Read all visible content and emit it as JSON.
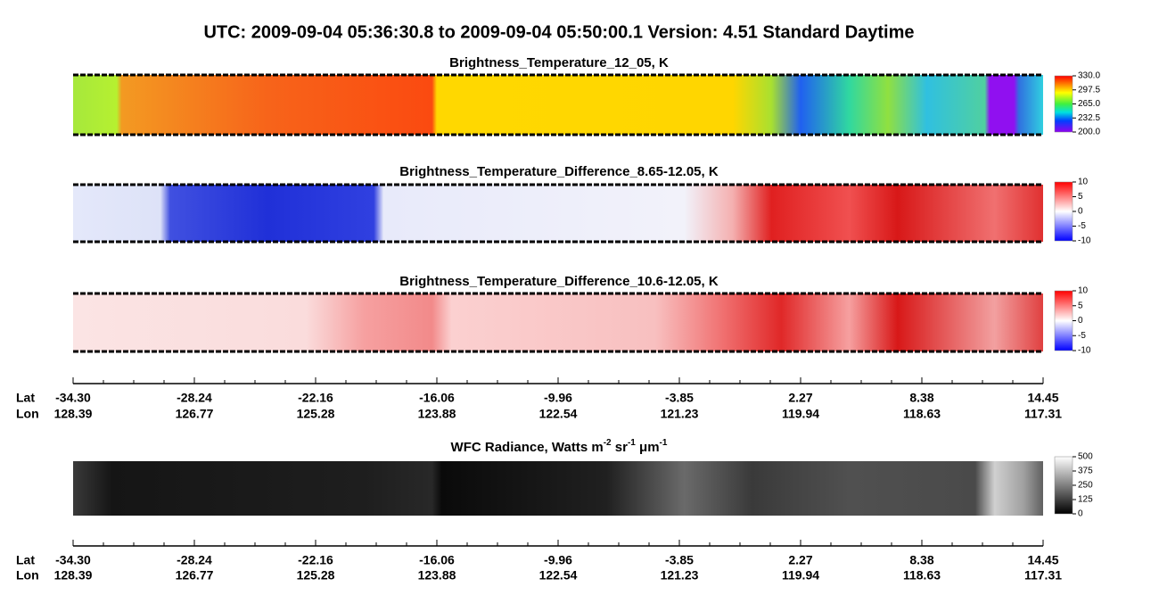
{
  "title": "UTC:  2009-09-04   05:36:30.8  to  2009-09-04   05:50:00.1    Version: 4.51  Standard Daytime",
  "panels": [
    {
      "title": "Brightness_Temperature_12_05, K",
      "colorbar": {
        "lim": [
          200,
          330
        ],
        "ticks": [
          {
            "value": 330,
            "label": "330.0"
          },
          {
            "value": 297.5,
            "label": "297.5"
          },
          {
            "value": 265,
            "label": "265.0"
          },
          {
            "value": 232.5,
            "label": "232.5"
          },
          {
            "value": 200,
            "label": "200.0"
          }
        ]
      }
    },
    {
      "title": "Brightness_Temperature_Difference_8.65-12.05, K",
      "colorbar": {
        "lim": [
          -10,
          10
        ],
        "ticks": [
          10,
          5,
          0,
          -5,
          -10
        ]
      }
    },
    {
      "title": "Brightness_Temperature_Difference_10.6-12.05, K",
      "colorbar": {
        "lim": [
          -10,
          10
        ],
        "ticks": [
          10,
          5,
          0,
          -5,
          -10
        ]
      }
    },
    {
      "title_parts": [
        "WFC Radiance, Watts m",
        "-2",
        " sr",
        "-1",
        " μm",
        "-1"
      ],
      "colorbar": {
        "lim": [
          0,
          500
        ],
        "ticks": [
          500,
          375,
          250,
          125,
          0
        ]
      }
    }
  ],
  "axis": {
    "lat_label": "Lat",
    "lon_label": "Lon",
    "lat": [
      "-34.30",
      "-28.24",
      "-22.16",
      "-16.06",
      "-9.96",
      "-3.85",
      "2.27",
      "8.38",
      "14.45"
    ],
    "lon": [
      "128.39",
      "126.77",
      "125.28",
      "123.88",
      "122.54",
      "121.23",
      "119.94",
      "118.63",
      "117.31"
    ]
  }
}
